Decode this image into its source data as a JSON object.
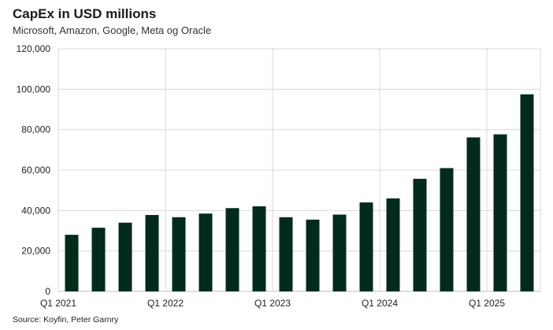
{
  "title": "CapEx in USD millions",
  "subtitle": "Microsoft, Amazon, Google, Meta og Oracle",
  "source": "Source: Koyfin, Peter Garnry",
  "colors": {
    "bar": "#022b1c",
    "grid": "#d9d9d9",
    "axis": "#bfbfbf"
  },
  "chart_data": {
    "type": "bar",
    "title": "CapEx in USD millions",
    "subtitle": "Microsoft, Amazon, Google, Meta og Oracle",
    "xlabel": "",
    "ylabel": "",
    "ylim": [
      0,
      120000
    ],
    "yticks": [
      0,
      20000,
      40000,
      60000,
      80000,
      100000,
      120000
    ],
    "ytick_labels": [
      "0",
      "20,000",
      "40,000",
      "60,000",
      "80,000",
      "100,000",
      "120,000"
    ],
    "grid": true,
    "categories": [
      "Q1 2021",
      "Q2 2021",
      "Q3 2021",
      "Q4 2021",
      "Q1 2022",
      "Q2 2022",
      "Q3 2022",
      "Q4 2022",
      "Q1 2023",
      "Q2 2023",
      "Q3 2023",
      "Q4 2023",
      "Q1 2024",
      "Q2 2024",
      "Q3 2024",
      "Q4 2024",
      "Q1 2025",
      "Q2 2025"
    ],
    "xtick_labels": [
      {
        "index": 0,
        "label": "Q1 2021"
      },
      {
        "index": 4,
        "label": "Q1 2022"
      },
      {
        "index": 8,
        "label": "Q1 2023"
      },
      {
        "index": 12,
        "label": "Q1 2024"
      },
      {
        "index": 16,
        "label": "Q1 2025"
      }
    ],
    "series": [
      {
        "name": "CapEx",
        "values": [
          28000,
          31500,
          34000,
          37800,
          36700,
          38500,
          41200,
          42100,
          36700,
          35500,
          38000,
          44000,
          46000,
          55700,
          61000,
          76200,
          77700,
          97500
        ]
      }
    ]
  }
}
